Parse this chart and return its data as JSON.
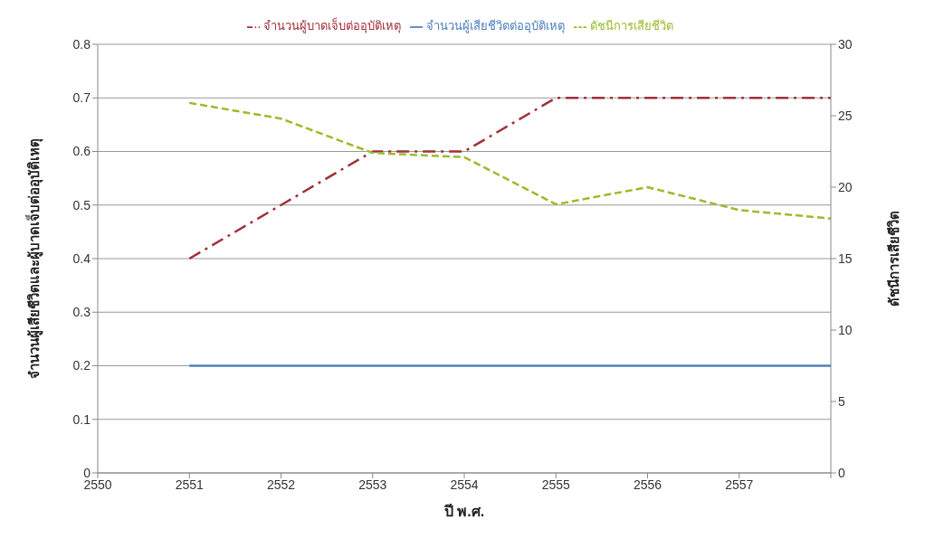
{
  "chart_data": {
    "type": "line",
    "categories": [
      "2550",
      "2551",
      "2552",
      "2553",
      "2554",
      "2555",
      "2556",
      "2557",
      null
    ],
    "xlabel": "ปี พ.ศ.",
    "ylabel": "จำนวนผู้เสียชีวิตและผู้บาดเจ็บต่ออุบัติเหตุ",
    "y2label": "ดัชนีการเสียชีวิต",
    "ylim": [
      0,
      0.8
    ],
    "yticks": [
      0,
      0.1,
      0.2,
      0.3,
      0.4,
      0.5,
      0.6,
      0.7,
      0.8
    ],
    "y2lim": [
      0,
      30
    ],
    "y2ticks": [
      0,
      5,
      10,
      15,
      20,
      25,
      30
    ],
    "grid": "y",
    "legend": "top",
    "marker": "none",
    "series": [
      {
        "name": "จำนวนผู้เสียชีวิตต่ออุบัติเหตุ",
        "color": "#4f81bd",
        "line_style": "solid",
        "values": [
          null,
          0.2,
          0.2,
          0.2,
          0.2,
          0.2,
          0.2,
          0.2,
          0.2
        ]
      },
      {
        "name": "จำนวนผู้บาดเจ็บต่ออุบัติเหตุ",
        "color": "#a0303a",
        "line_style": "dashdot",
        "values": [
          null,
          0.4,
          0.5,
          0.6,
          0.6,
          0.7,
          0.7,
          0.7,
          0.7
        ]
      },
      {
        "name": "ดัชนีการเสียชีวิต",
        "color": "#9bbb2c",
        "line_style": "dashed",
        "axis": "y2",
        "values": [
          null,
          25.9,
          24.8,
          22.4,
          22.1,
          18.8,
          20.0,
          18.4,
          17.8
        ]
      }
    ]
  }
}
